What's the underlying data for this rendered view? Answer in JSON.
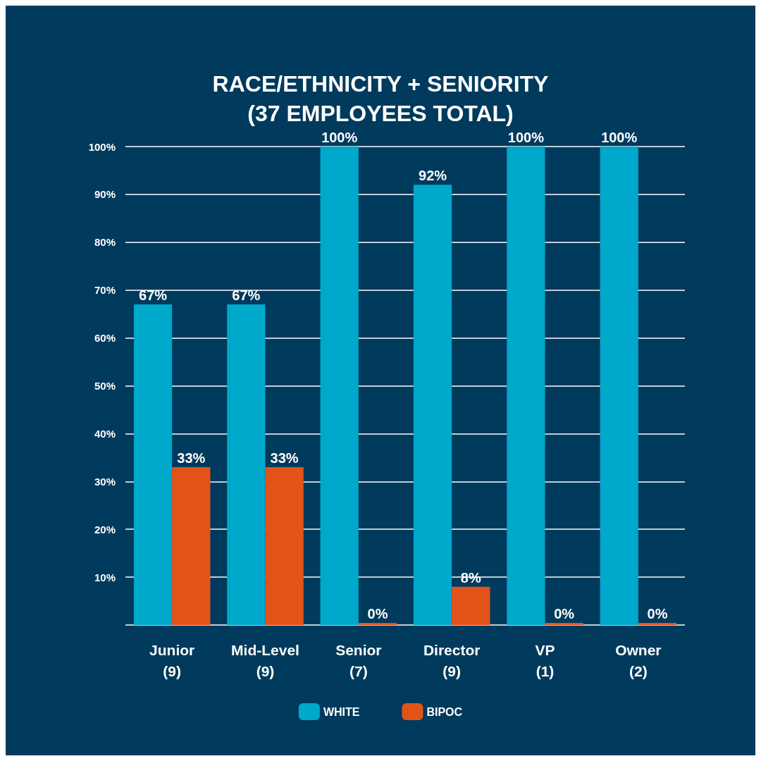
{
  "chart_data": {
    "type": "bar",
    "title": "RACE/ETHNICITY + SENIORITY\n(37 EMPLOYEES TOTAL)",
    "categories": [
      "Junior\n(9)",
      "Mid-Level\n(9)",
      "Senior\n(7)",
      "Director\n(9)",
      "VP\n(1)",
      "Owner\n(2)"
    ],
    "series": [
      {
        "name": "WHITE",
        "color": "#00a8cc",
        "values": [
          67,
          67,
          100,
          92,
          100,
          100
        ],
        "value_labels": [
          "67%",
          "67%",
          "100%",
          "92%",
          "100%",
          "100%"
        ]
      },
      {
        "name": "BIPOC",
        "color": "#e2531a",
        "values": [
          33,
          33,
          0,
          8,
          0,
          0
        ],
        "value_labels": [
          "33%",
          "33%",
          "0%",
          "8%",
          "0%",
          "0%"
        ]
      }
    ],
    "ylim": [
      0,
      100
    ],
    "yticks": [
      {
        "value": 0,
        "label": null
      },
      {
        "value": 10,
        "label": "10%"
      },
      {
        "value": 20,
        "label": "20%"
      },
      {
        "value": 30,
        "label": "30%"
      },
      {
        "value": 40,
        "label": "40%"
      },
      {
        "value": 50,
        "label": "50%"
      },
      {
        "value": 60,
        "label": "60%"
      },
      {
        "value": 70,
        "label": "70%"
      },
      {
        "value": 80,
        "label": "80%"
      },
      {
        "value": 90,
        "label": "90%"
      },
      {
        "value": 100,
        "label": "100%"
      }
    ],
    "grid": "y",
    "legend": "bottom"
  }
}
